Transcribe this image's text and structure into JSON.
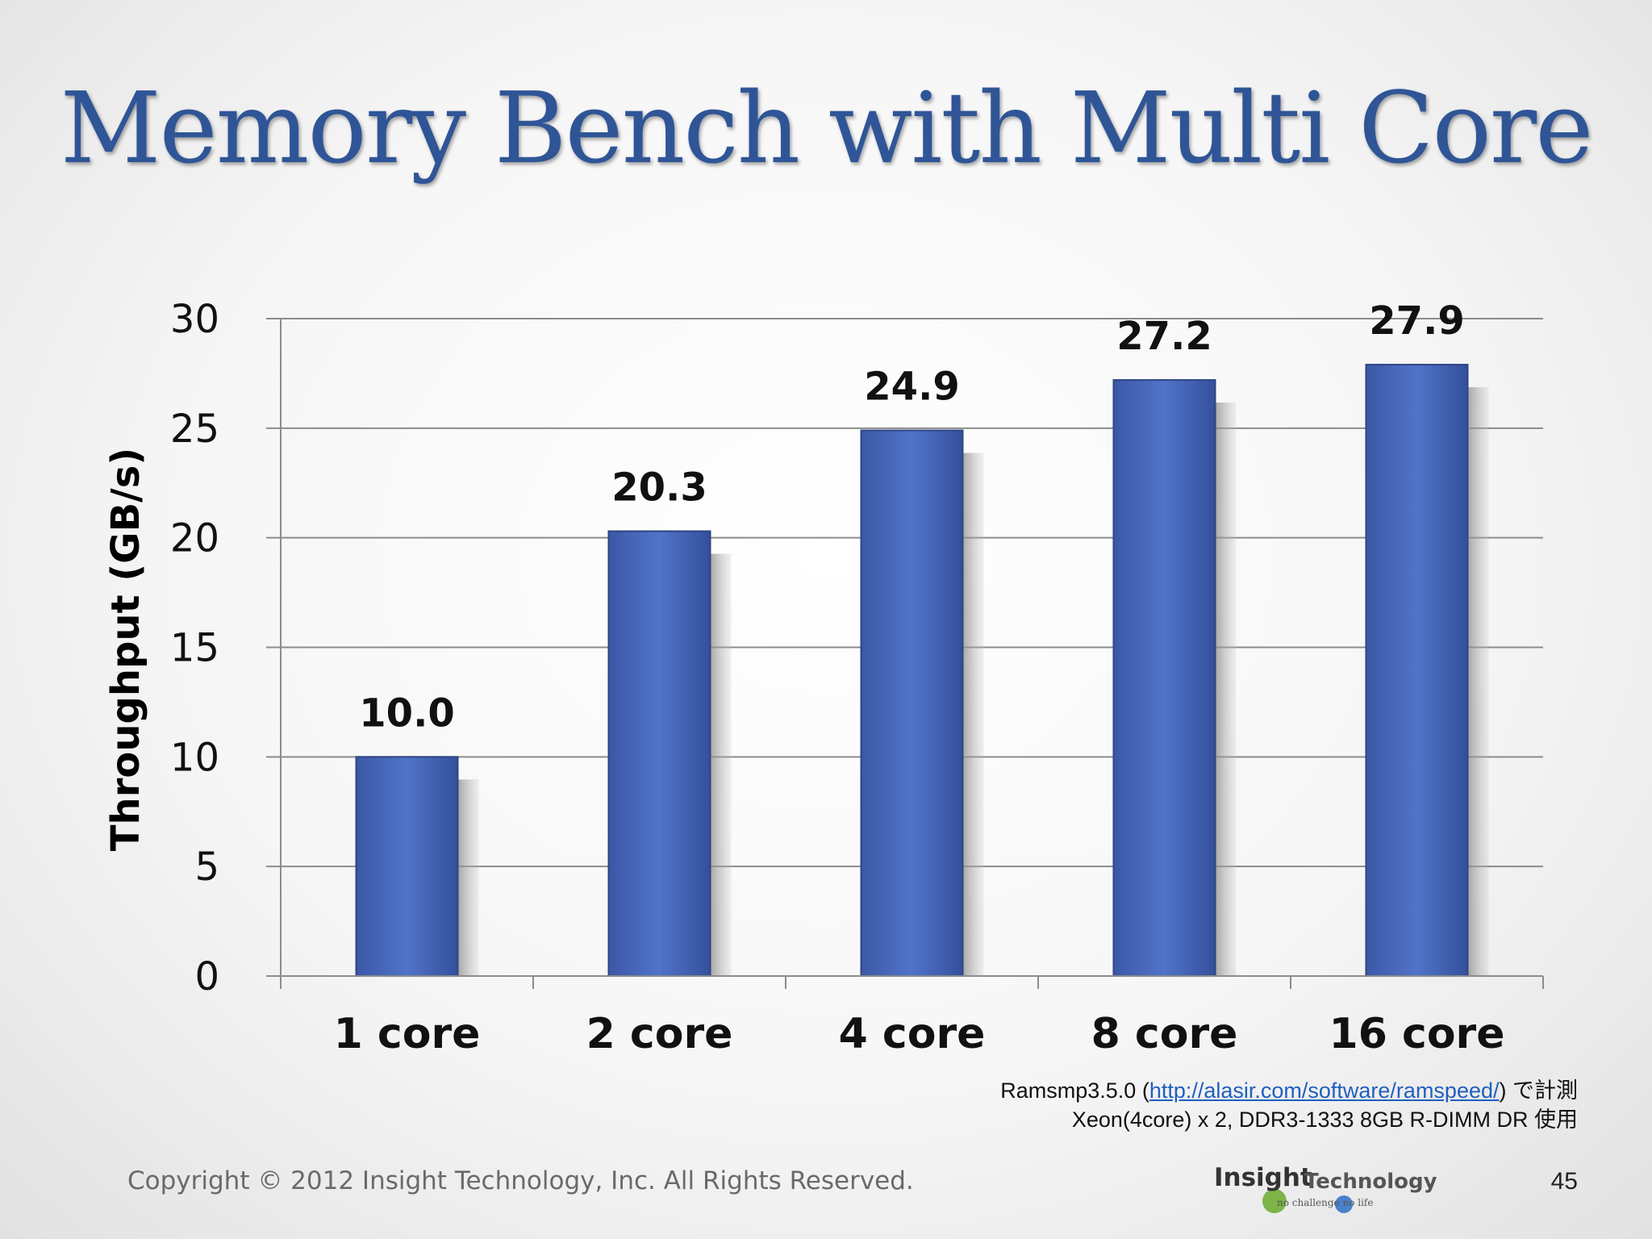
{
  "slide": {
    "title": "Memory Bench with Multi Core",
    "note_line1_prefix": "Ramsmp3.5.0 (",
    "note_line1_link": "http://alasir.com/software/ramspeed/",
    "note_line1_suffix": ") で計測",
    "note_line2": "Xeon(4core) x 2, DDR3-1333  8GB R-DIMM DR 使用",
    "copyright": "Copyright © 2012 Insight Technology, Inc. All Rights Reserved.",
    "logo_insight": "Insight",
    "logo_technology": "Technology",
    "logo_tagline": "no challenge no life",
    "page_number": "45"
  },
  "chart_data": {
    "type": "bar",
    "title": "",
    "xlabel": "",
    "ylabel": "Throughput (GB/s)",
    "categories": [
      "1 core",
      "2 core",
      "4 core",
      "8 core",
      "16 core"
    ],
    "values": [
      10.0,
      20.3,
      24.9,
      27.2,
      27.9
    ],
    "value_labels": [
      "10.0",
      "20.3",
      "24.9",
      "27.2",
      "27.9"
    ],
    "ylim": [
      0,
      30
    ],
    "yticks": [
      0,
      5,
      10,
      15,
      20,
      25,
      30
    ],
    "grid": true,
    "legend": "none",
    "bar_color": "#4a6cc0"
  }
}
